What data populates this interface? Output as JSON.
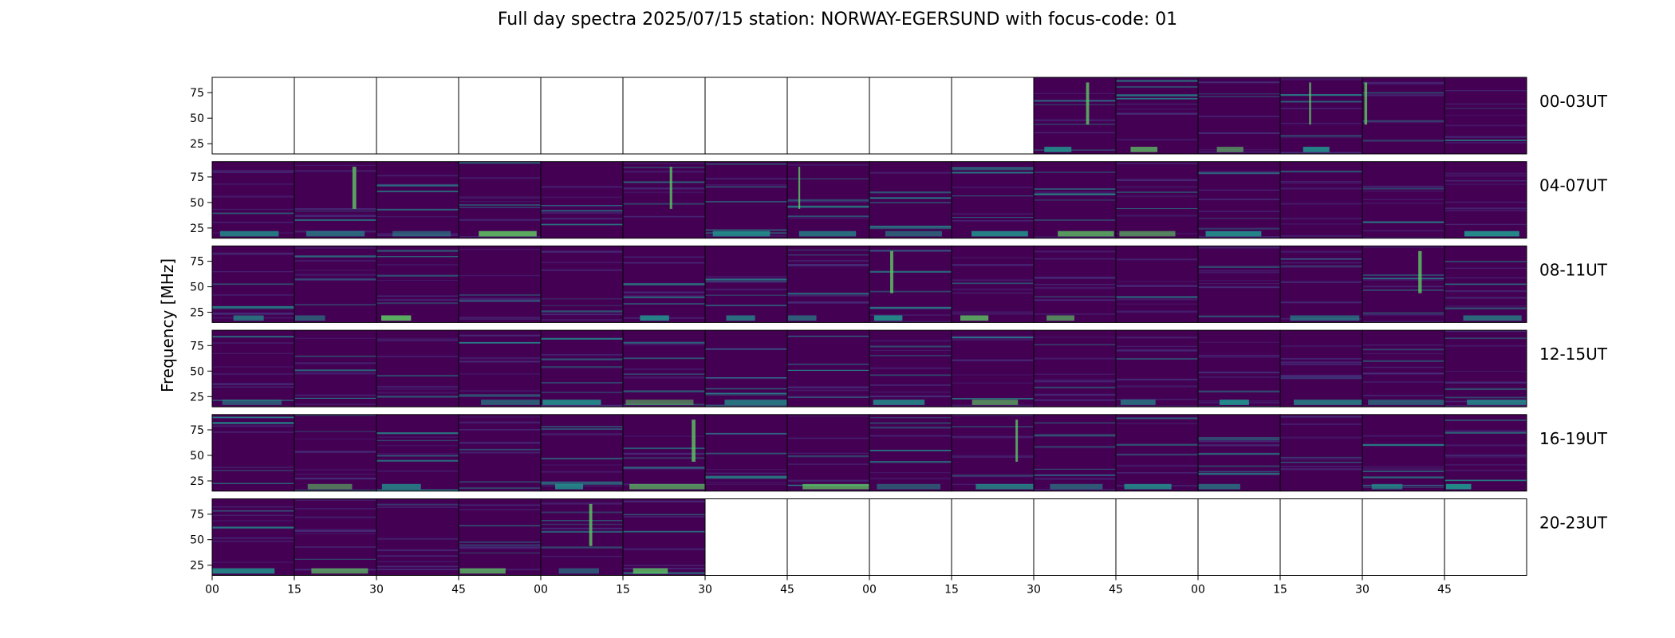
{
  "chart_data": {
    "type": "heatmap",
    "title": "Full day spectra 2025/07/15 station: NORWAY-EGERSUND with focus-code: 01",
    "ylabel": "Frequency [MHz]",
    "xlabel": "",
    "colormap": "viridis",
    "grid": false,
    "yticks": [
      25,
      50,
      75
    ],
    "ylim": [
      15,
      90
    ],
    "xtick_labels": [
      "00",
      "15",
      "30",
      "45",
      "00",
      "15",
      "30",
      "45",
      "00",
      "15",
      "30",
      "45",
      "00",
      "15",
      "30",
      "45"
    ],
    "rows": [
      {
        "label": "00-03UT",
        "data_panels": [
          false,
          false,
          false,
          false,
          false,
          false,
          false,
          false,
          false,
          false,
          true,
          true,
          true,
          true,
          true,
          true
        ]
      },
      {
        "label": "04-07UT",
        "data_panels": [
          true,
          true,
          true,
          true,
          true,
          true,
          true,
          true,
          true,
          true,
          true,
          true,
          true,
          true,
          true,
          true
        ]
      },
      {
        "label": "08-11UT",
        "data_panels": [
          true,
          true,
          true,
          true,
          true,
          true,
          true,
          true,
          true,
          true,
          true,
          true,
          true,
          true,
          true,
          true
        ]
      },
      {
        "label": "12-15UT",
        "data_panels": [
          true,
          true,
          true,
          true,
          true,
          true,
          true,
          true,
          true,
          true,
          true,
          true,
          true,
          true,
          true,
          true
        ]
      },
      {
        "label": "16-19UT",
        "data_panels": [
          true,
          true,
          true,
          true,
          true,
          true,
          true,
          true,
          true,
          true,
          true,
          true,
          true,
          true,
          true,
          true
        ]
      },
      {
        "label": "20-23UT",
        "data_panels": [
          true,
          true,
          true,
          true,
          true,
          true,
          false,
          false,
          false,
          false,
          false,
          false,
          false,
          false,
          false,
          false
        ]
      }
    ],
    "colors": {
      "background": "#440154",
      "low": "#46337e",
      "mid": "#21918c",
      "high": "#5ec962",
      "peak": "#fde725",
      "empty": "#ffffff"
    }
  }
}
